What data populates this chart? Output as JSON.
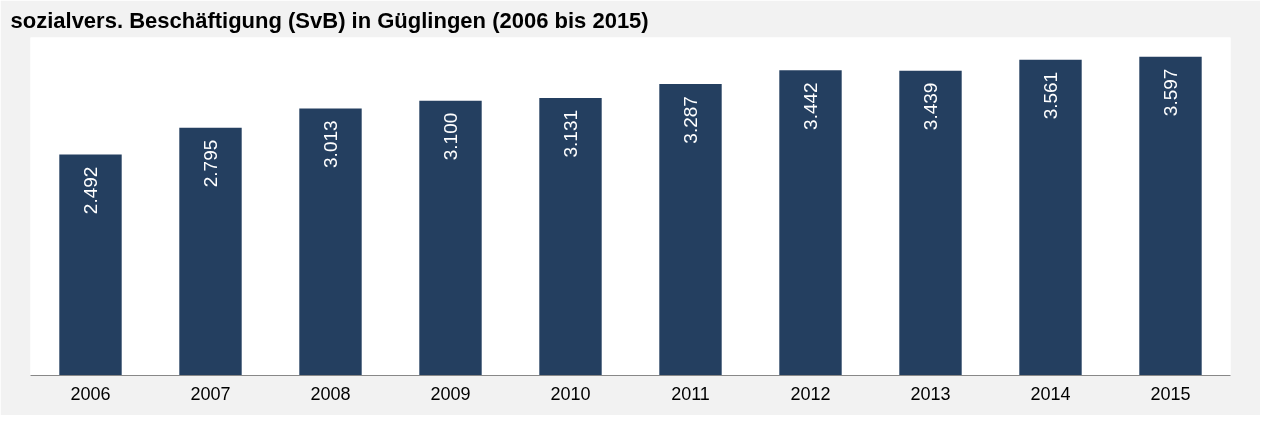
{
  "chart_data": {
    "type": "bar",
    "title": "sozialvers. Beschäftigung (SvB) in Güglingen (2006 bis 2015)",
    "categories": [
      "2006",
      "2007",
      "2008",
      "2009",
      "2010",
      "2011",
      "2012",
      "2013",
      "2014",
      "2015"
    ],
    "values": [
      2492,
      2795,
      3013,
      3100,
      3131,
      3287,
      3442,
      3439,
      3561,
      3597
    ],
    "value_labels": [
      "2.492",
      "2.795",
      "3.013",
      "3.100",
      "3.131",
      "3.287",
      "3.442",
      "3.439",
      "3.561",
      "3.597"
    ],
    "color": "#243f60",
    "tick_labels": "x",
    "grid": false
  }
}
